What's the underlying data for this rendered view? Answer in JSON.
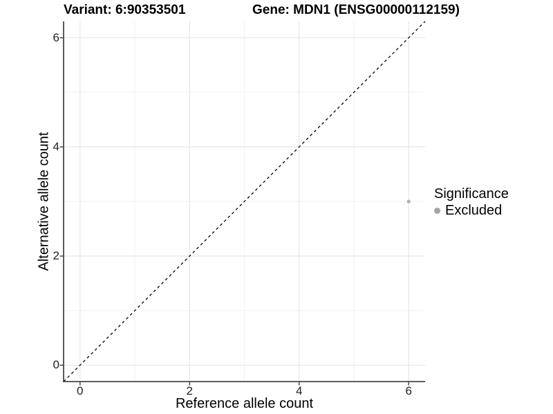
{
  "figure": {
    "title_left": "Variant: 6:90353501",
    "title_right": "Gene: MDN1 (ENSG00000112159)"
  },
  "chart_data": {
    "type": "scatter",
    "title": "Variant: 6:90353501  /  Gene: MDN1 (ENSG00000112159)",
    "xlabel": "Reference allele count",
    "ylabel": "Alternative allele count",
    "xlim": [
      -0.3,
      6.3
    ],
    "ylim": [
      -0.3,
      6.3
    ],
    "xticks": [
      0,
      2,
      4,
      6
    ],
    "yticks": [
      0,
      2,
      4,
      6
    ],
    "x_minor_ticks": [
      1,
      3,
      5
    ],
    "y_minor_ticks": [
      1,
      3,
      5
    ],
    "grid": "major and minor, light gray, white background",
    "reference_line": {
      "kind": "identity",
      "equation": "y = x",
      "style": "dashed",
      "color": "#000000"
    },
    "series": [
      {
        "name": "Excluded",
        "marker": "circle",
        "color": "#b0b0b0",
        "points": [
          {
            "x": 6,
            "y": 3
          }
        ]
      }
    ],
    "legend": {
      "title": "Significance",
      "position": "right",
      "items": [
        {
          "label": "Excluded",
          "color": "#a4a4a4"
        }
      ]
    }
  },
  "colors": {
    "background": "#ffffff",
    "grid_major": "#e6e6e6",
    "grid_minor": "#f1f1f1",
    "axis_line": "#474747",
    "tick_mark": "#474747",
    "point": "#b0b0b0",
    "dashed_line": "#000000",
    "text": "#000000"
  }
}
